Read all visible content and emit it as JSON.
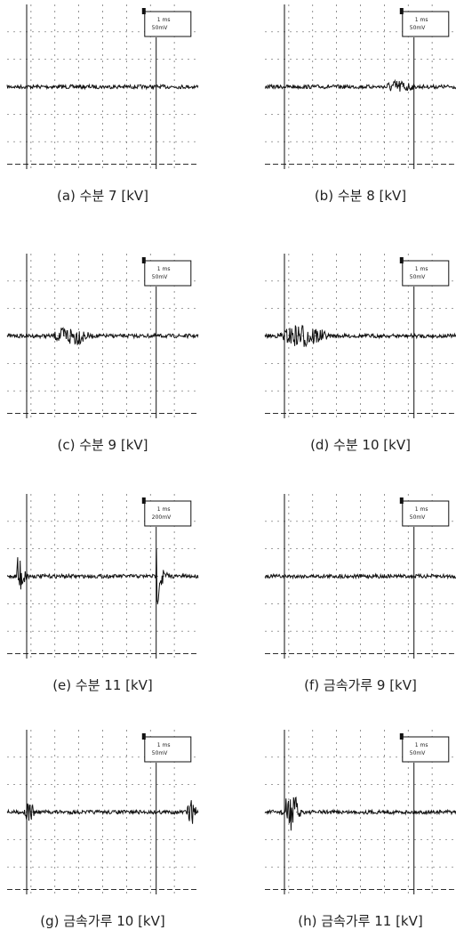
{
  "figures": [
    {
      "caption": "(a) 수분 7 [kV]",
      "scale": {
        "time": "1 ms",
        "volt": "50mV"
      }
    },
    {
      "caption": "(b) 수분 8 [kV]",
      "scale": {
        "time": "1 ms",
        "volt": "50mV"
      }
    },
    {
      "caption": "(c) 수분 9 [kV]",
      "scale": {
        "time": "1 ms",
        "volt": "50mV"
      }
    },
    {
      "caption": "(d) 수분 10 [kV]",
      "scale": {
        "time": "1 ms",
        "volt": "50mV"
      }
    },
    {
      "caption": "(e) 수분 11 [kV]",
      "scale": {
        "time": "1 ms",
        "volt": "200mV"
      }
    },
    {
      "caption": "(f) 금속가루 9 [kV]",
      "scale": {
        "time": "1 ms",
        "volt": "50mV"
      }
    },
    {
      "caption": "(g) 금속가루 10 [kV]",
      "scale": {
        "time": "1 ms",
        "volt": "50mV"
      }
    },
    {
      "caption": "(h) 금속가루 11 [kV]",
      "scale": {
        "time": "1 ms",
        "volt": "50mV"
      }
    }
  ]
}
